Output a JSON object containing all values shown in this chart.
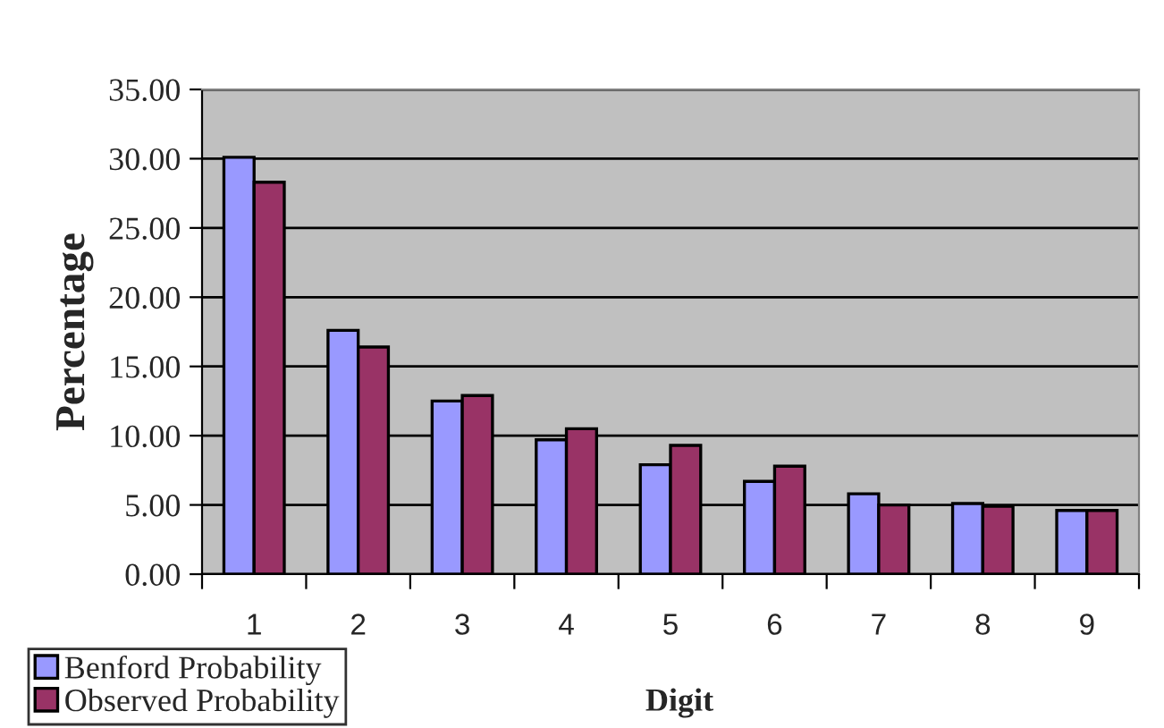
{
  "chart_data": {
    "type": "bar",
    "xlabel": "Digit",
    "ylabel": "Percentage",
    "categories": [
      "1",
      "2",
      "3",
      "4",
      "5",
      "6",
      "7",
      "8",
      "9"
    ],
    "series": [
      {
        "name": "Benford Probability",
        "color": "#9999ff",
        "values": [
          30.1,
          17.6,
          12.5,
          9.7,
          7.9,
          6.7,
          5.8,
          5.1,
          4.6
        ]
      },
      {
        "name": "Observed Probability",
        "color": "#993366",
        "values": [
          28.3,
          16.4,
          12.9,
          10.5,
          9.3,
          7.8,
          5.0,
          4.9,
          4.6
        ]
      }
    ],
    "ylim": [
      0,
      35
    ],
    "yticks": [
      {
        "value": 0,
        "label": "0.00"
      },
      {
        "value": 5,
        "label": "5.00"
      },
      {
        "value": 10,
        "label": "10.00"
      },
      {
        "value": 15,
        "label": "15.00"
      },
      {
        "value": 20,
        "label": "20.00"
      },
      {
        "value": 25,
        "label": "25.00"
      },
      {
        "value": 30,
        "label": "30.00"
      },
      {
        "value": 35,
        "label": "35.00"
      }
    ],
    "grid": "y",
    "legend": "bottom left"
  }
}
